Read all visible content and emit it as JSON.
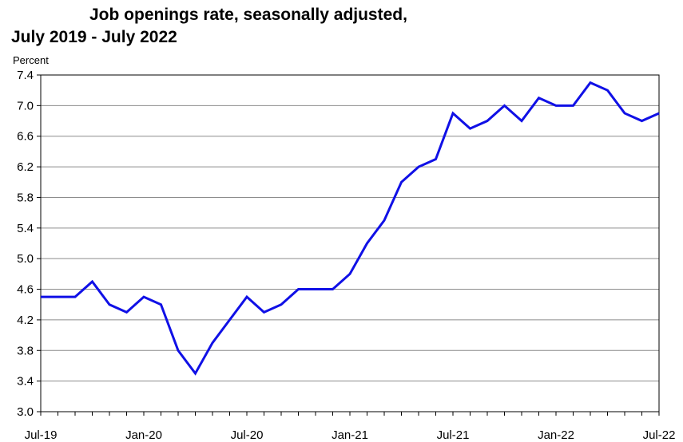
{
  "chart_data": {
    "type": "line",
    "title_lines": [
      "Job openings rate, seasonally adjusted,",
      "July 2019 - July 2022"
    ],
    "ylabel": "Percent",
    "ylim": [
      3.0,
      7.4
    ],
    "yticks": [
      "3.0",
      "3.4",
      "3.8",
      "4.2",
      "4.6",
      "5.0",
      "5.4",
      "5.8",
      "6.2",
      "6.6",
      "7.0",
      "7.4"
    ],
    "xtick_labels": [
      "Jul-19",
      "Jan-20",
      "Jul-20",
      "Jan-21",
      "Jul-21",
      "Jan-22",
      "Jul-22"
    ],
    "xtick_months_index": [
      0,
      6,
      12,
      18,
      24,
      30,
      36
    ],
    "grid": true,
    "line_color": "#1010e6",
    "x": [
      "2019-07",
      "2019-08",
      "2019-09",
      "2019-10",
      "2019-11",
      "2019-12",
      "2020-01",
      "2020-02",
      "2020-03",
      "2020-04",
      "2020-05",
      "2020-06",
      "2020-07",
      "2020-08",
      "2020-09",
      "2020-10",
      "2020-11",
      "2020-12",
      "2021-01",
      "2021-02",
      "2021-03",
      "2021-04",
      "2021-05",
      "2021-06",
      "2021-07",
      "2021-08",
      "2021-09",
      "2021-10",
      "2021-11",
      "2021-12",
      "2022-01",
      "2022-02",
      "2022-03",
      "2022-04",
      "2022-05",
      "2022-06",
      "2022-07"
    ],
    "values": [
      4.5,
      4.5,
      4.5,
      4.7,
      4.4,
      4.3,
      4.5,
      4.4,
      3.8,
      3.5,
      3.9,
      4.2,
      4.5,
      4.3,
      4.4,
      4.6,
      4.6,
      4.6,
      4.8,
      5.2,
      5.5,
      6.0,
      6.2,
      6.3,
      6.9,
      6.7,
      6.8,
      7.0,
      6.8,
      7.1,
      7.0,
      7.0,
      7.3,
      7.2,
      6.9,
      6.8,
      6.9
    ]
  }
}
